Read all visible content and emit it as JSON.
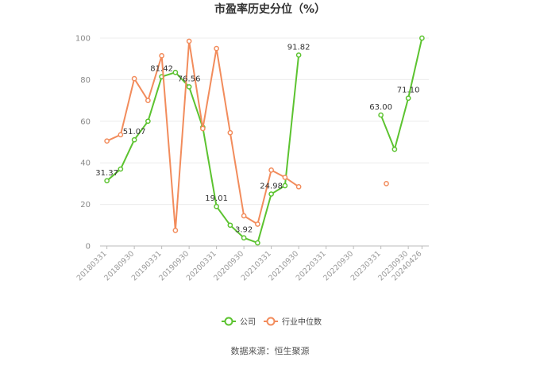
{
  "chart_data": {
    "type": "line",
    "title": "市盈率历史分位（%）",
    "xlabel": "",
    "ylabel": "",
    "ylim": [
      0,
      100
    ],
    "yticks": [
      0,
      20,
      40,
      60,
      80,
      100
    ],
    "x_tick_labels": [
      "20180331",
      "20180930",
      "20190331",
      "20190930",
      "20200331",
      "20200930",
      "20210331",
      "20210930",
      "20220331",
      "20220930",
      "20230331",
      "20230930",
      "20240426"
    ],
    "x": [
      "20180331",
      "20180630",
      "20180930",
      "20181231",
      "20190331",
      "20190630",
      "20190930",
      "20191231",
      "20200331",
      "20200630",
      "20200930",
      "20201231",
      "20210331",
      "20210630",
      "20210930",
      "20211231",
      "20220331",
      "20220630",
      "20220930",
      "20221231",
      "20230331",
      "20230630",
      "20230930",
      "20240426"
    ],
    "series": [
      {
        "name": "公司",
        "color": "#5cc330",
        "values": [
          31.37,
          37,
          51.07,
          60,
          81.42,
          83.5,
          76.56,
          57,
          19.01,
          10,
          3.92,
          1.5,
          24.98,
          29,
          91.82,
          null,
          null,
          null,
          null,
          null,
          63.0,
          46.5,
          71.1,
          100
        ],
        "labels": {
          "0": "31.37",
          "2": "51.07",
          "4": "81.42",
          "6": "76.56",
          "8": "19.01",
          "10": "3.92",
          "12": "24.98",
          "14": "91.82",
          "20": "63.00",
          "22": "71.10"
        }
      },
      {
        "name": "行业中位数",
        "color": "#f28c5c",
        "values": [
          50.5,
          53.5,
          80.5,
          70,
          91.5,
          7.5,
          98.5,
          56.5,
          95,
          54.5,
          14.5,
          10.5,
          36.5,
          33,
          28.5,
          null,
          null,
          null,
          null,
          null,
          null,
          null,
          null,
          null
        ],
        "isolated": [
          {
            "index": 20.4,
            "value": 30
          }
        ]
      }
    ],
    "grid": true,
    "legend": "bottom-center"
  },
  "source": "数据来源：恒生聚源"
}
